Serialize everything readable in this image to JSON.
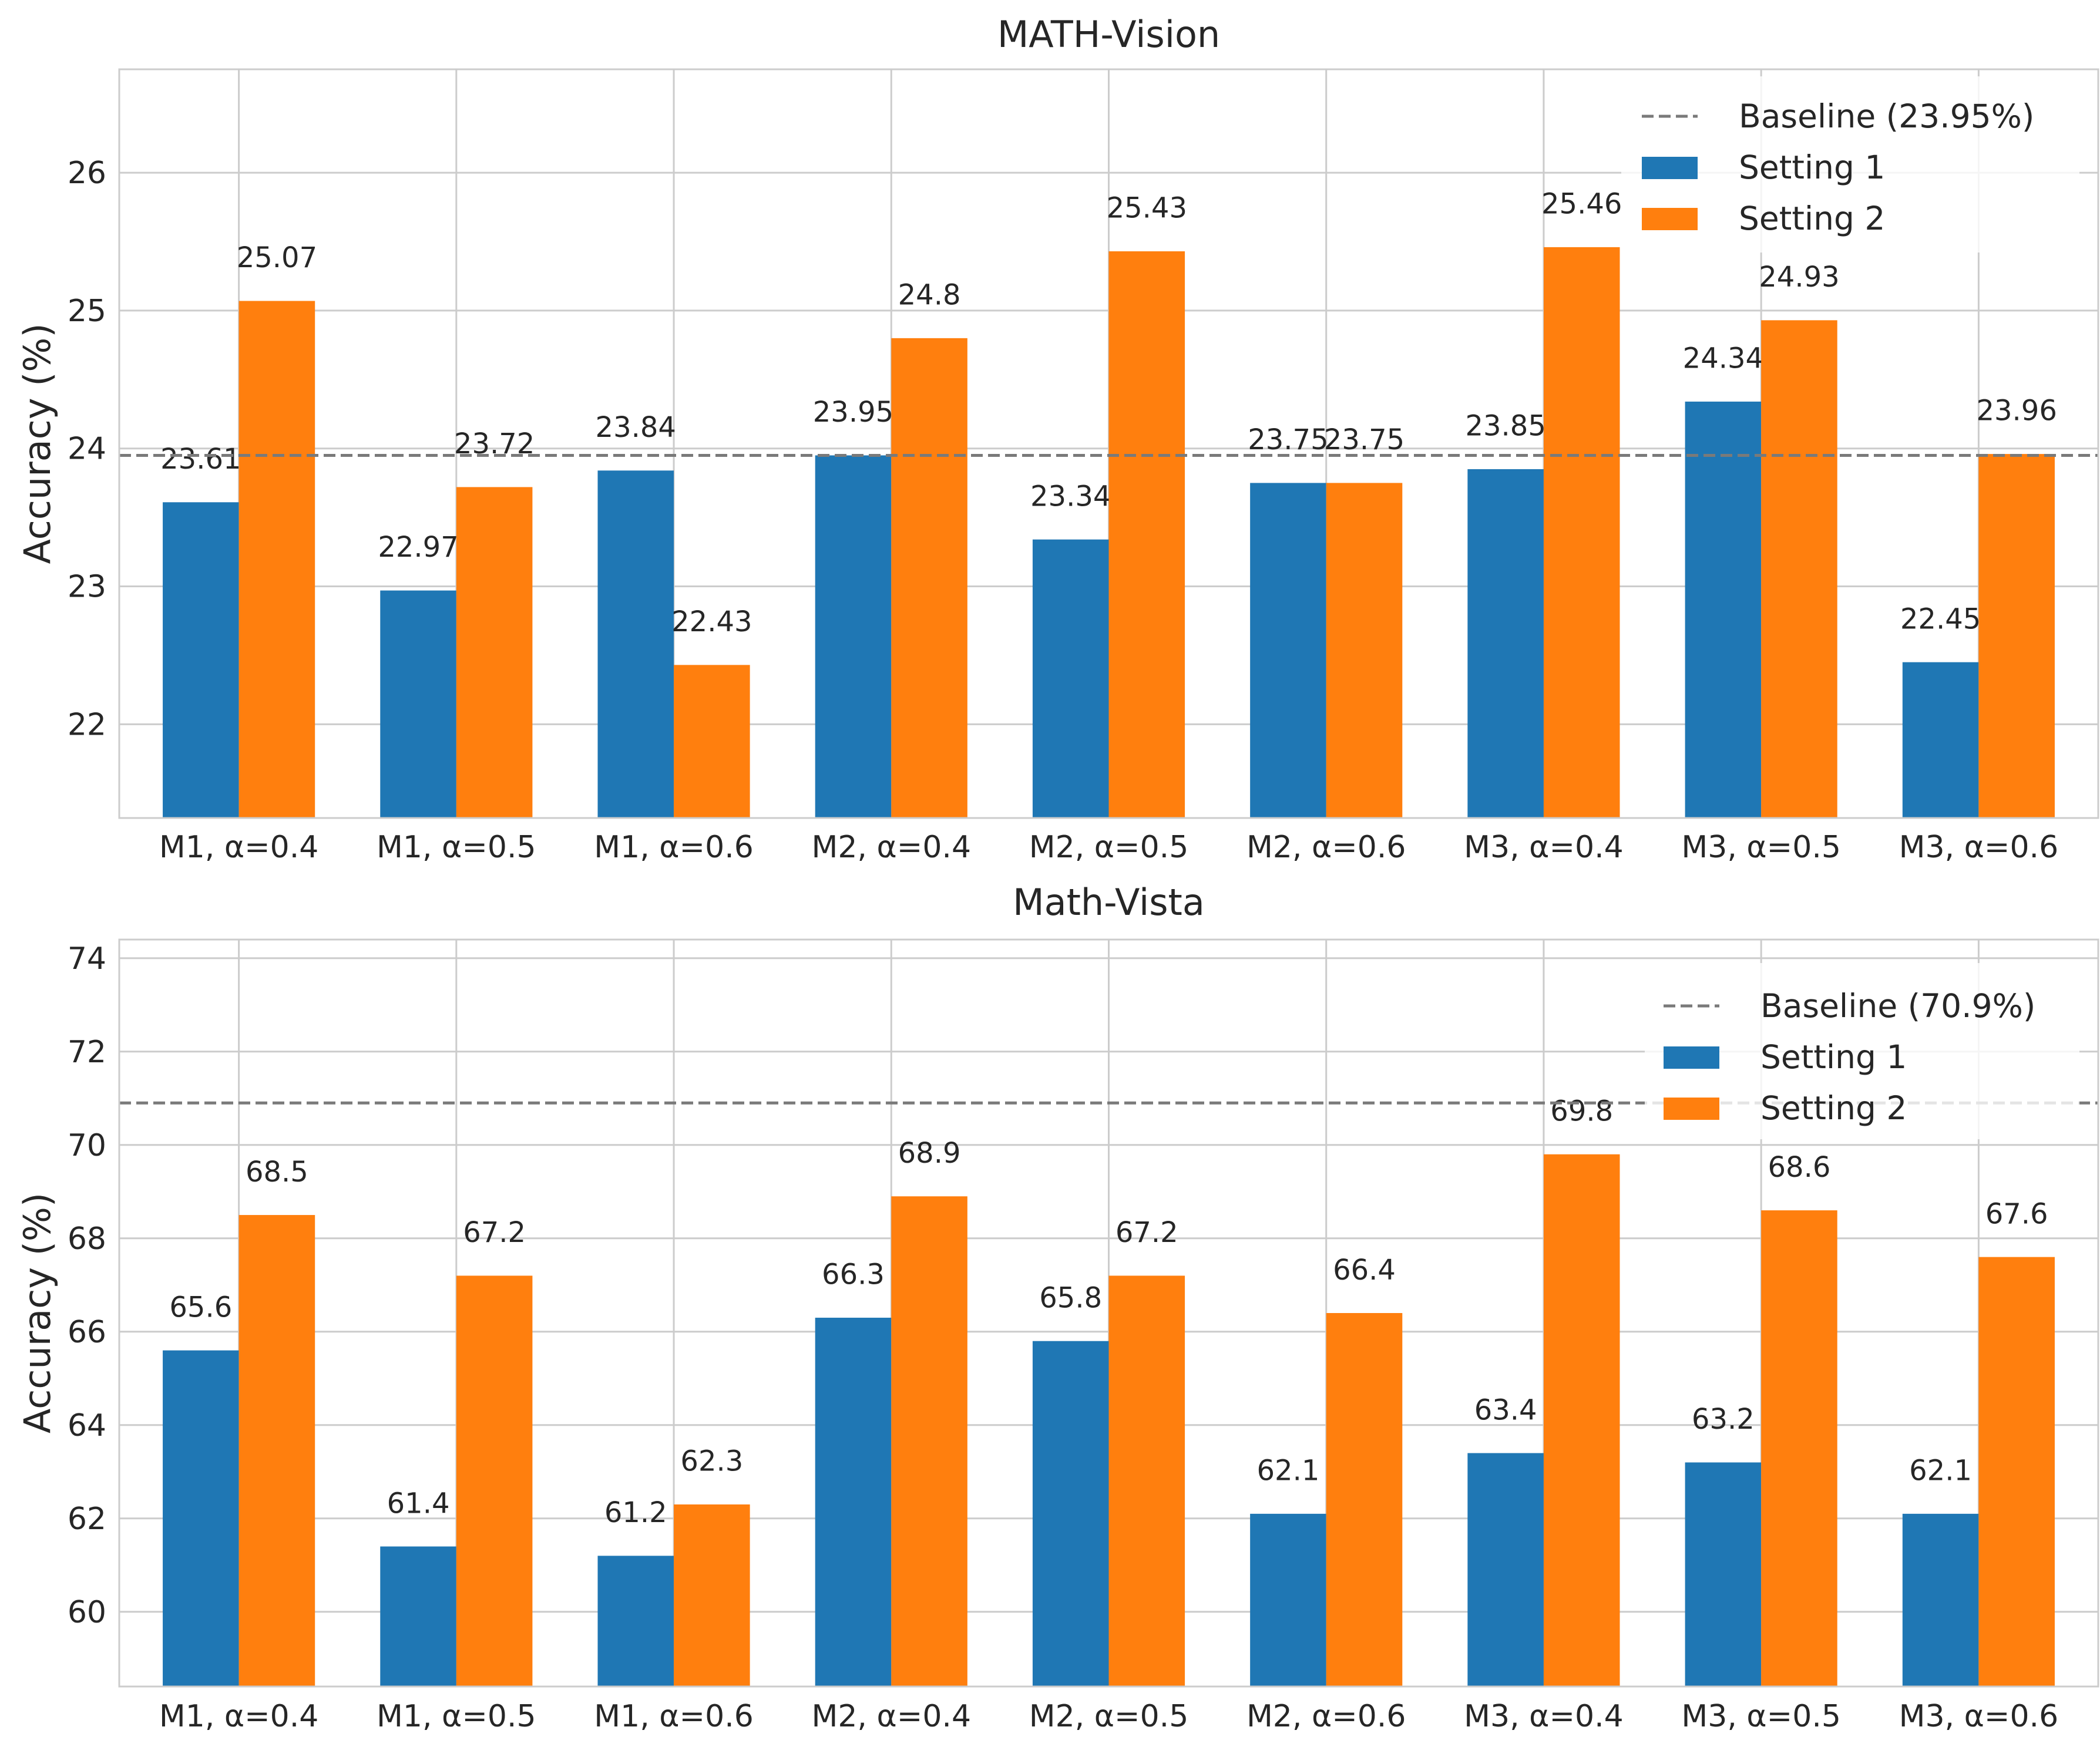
{
  "chart_data": [
    {
      "type": "bar",
      "title": "MATH-Vision",
      "xlabel": "",
      "ylabel": "Accuracy (%)",
      "categories": [
        "M1, α=0.4",
        "M1, α=0.5",
        "M1, α=0.6",
        "M2, α=0.4",
        "M2, α=0.5",
        "M2, α=0.6",
        "M3, α=0.4",
        "M3, α=0.5",
        "M3, α=0.6"
      ],
      "series": [
        {
          "name": "Setting 1",
          "color": "#1f77b4",
          "values": [
            23.61,
            22.97,
            23.84,
            23.95,
            23.34,
            23.75,
            23.85,
            24.34,
            22.45
          ],
          "labels": [
            "23.61",
            "22.97",
            "23.84",
            "23.95",
            "23.34",
            "23.75",
            "23.85",
            "24.34",
            "22.45"
          ]
        },
        {
          "name": "Setting 2",
          "color": "#ff7f0e",
          "values": [
            25.07,
            23.72,
            22.43,
            24.8,
            25.43,
            23.75,
            25.46,
            24.93,
            23.96
          ],
          "labels": [
            "25.07",
            "23.72",
            "22.43",
            "24.8",
            "25.43",
            "23.75",
            "25.46",
            "24.93",
            "23.96"
          ]
        }
      ],
      "baseline": {
        "value": 23.95,
        "label": "Baseline (23.95%)",
        "color": "#7a7a7a"
      },
      "ylim": [
        21.32,
        26.75
      ],
      "yticks": [
        22,
        23,
        24,
        25,
        26
      ],
      "ytick_labels": [
        "22",
        "23",
        "24",
        "25",
        "26"
      ],
      "grid": true,
      "legend_position": "top-right"
    },
    {
      "type": "bar",
      "title": "Math-Vista",
      "xlabel": "",
      "ylabel": "Accuracy (%)",
      "categories": [
        "M1, α=0.4",
        "M1, α=0.5",
        "M1, α=0.6",
        "M2, α=0.4",
        "M2, α=0.5",
        "M2, α=0.6",
        "M3, α=0.4",
        "M3, α=0.5",
        "M3, α=0.6"
      ],
      "series": [
        {
          "name": "Setting 1",
          "color": "#1f77b4",
          "values": [
            65.6,
            61.4,
            61.2,
            66.3,
            65.8,
            62.1,
            63.4,
            63.2,
            62.1
          ],
          "labels": [
            "65.6",
            "61.4",
            "61.2",
            "66.3",
            "65.8",
            "62.1",
            "63.4",
            "63.2",
            "62.1"
          ]
        },
        {
          "name": "Setting 2",
          "color": "#ff7f0e",
          "values": [
            68.5,
            67.2,
            62.3,
            68.9,
            67.2,
            66.4,
            69.8,
            68.6,
            67.6
          ],
          "labels": [
            "68.5",
            "67.2",
            "62.3",
            "68.9",
            "67.2",
            "66.4",
            "69.8",
            "68.6",
            "67.6"
          ]
        }
      ],
      "baseline": {
        "value": 70.9,
        "label": "Baseline (70.9%)",
        "color": "#7a7a7a"
      },
      "ylim": [
        58.4,
        74.4
      ],
      "yticks": [
        60,
        62,
        64,
        66,
        68,
        70,
        72,
        74
      ],
      "ytick_labels": [
        "60",
        "62",
        "64",
        "66",
        "68",
        "70",
        "72",
        "74"
      ],
      "grid": true,
      "legend_position": "top-right"
    }
  ]
}
